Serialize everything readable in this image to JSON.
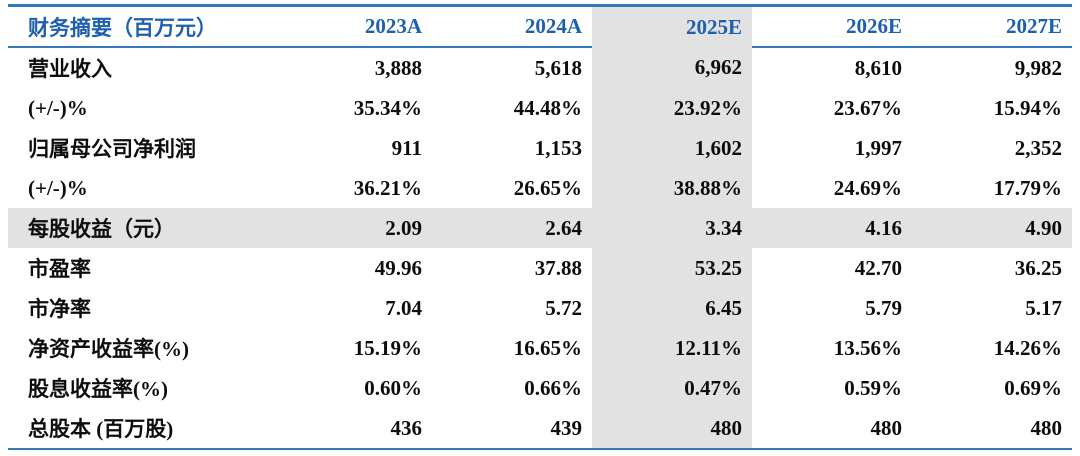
{
  "colors": {
    "header_text_blue": "#1e5fae",
    "rule_blue": "#3579bd",
    "highlight_gray": "#e2e2e2",
    "body_text": "#0d0d0d"
  },
  "table": {
    "title_header": "财务摘要（百万元）",
    "header": [
      "财务摘要（百万元）",
      "2023A",
      "2024A",
      "2025E",
      "2026E",
      "2027E"
    ],
    "highlight_column": "2025E",
    "highlight_row": "每股收益（元）",
    "rows": [
      {
        "label": "营业收入",
        "values": [
          "3,888",
          "5,618",
          "6,962",
          "8,610",
          "9,982"
        ]
      },
      {
        "label": "(+/-)%",
        "values": [
          "35.34%",
          "44.48%",
          "23.92%",
          "23.67%",
          "15.94%"
        ]
      },
      {
        "label": "归属母公司净利润",
        "values": [
          "911",
          "1,153",
          "1,602",
          "1,997",
          "2,352"
        ]
      },
      {
        "label": "(+/-)%",
        "values": [
          "36.21%",
          "26.65%",
          "38.88%",
          "24.69%",
          "17.79%"
        ]
      },
      {
        "label": "每股收益（元）",
        "values": [
          "2.09",
          "2.64",
          "3.34",
          "4.16",
          "4.90"
        ]
      },
      {
        "label": "市盈率",
        "values": [
          "49.96",
          "37.88",
          "53.25",
          "42.70",
          "36.25"
        ]
      },
      {
        "label": "市净率",
        "values": [
          "7.04",
          "5.72",
          "6.45",
          "5.79",
          "5.17"
        ]
      },
      {
        "label": "净资产收益率(%)",
        "values": [
          "15.19%",
          "16.65%",
          "12.11%",
          "13.56%",
          "14.26%"
        ]
      },
      {
        "label": "股息收益率(%)",
        "values": [
          "0.60%",
          "0.66%",
          "0.47%",
          "0.59%",
          "0.69%"
        ]
      },
      {
        "label": "总股本 (百万股)",
        "values": [
          "436",
          "439",
          "480",
          "480",
          "480"
        ]
      }
    ]
  }
}
